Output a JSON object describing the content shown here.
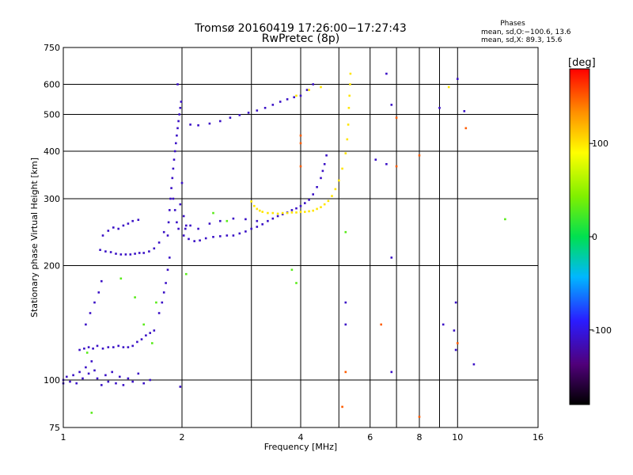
{
  "chart_data": {
    "type": "scatter",
    "title": "Tromsø 20160419 17:26:00−17:27:43",
    "subtitle": "RwPretec (8p)",
    "xlabel": "Frequency [MHz]",
    "ylabel": "Stationary phase Virtual Height [km]",
    "x_scale": "log",
    "y_scale": "log",
    "xlim": [
      1,
      16
    ],
    "ylim": [
      75,
      750
    ],
    "x_ticks": [
      1,
      2,
      4,
      6,
      8,
      10,
      16
    ],
    "y_ticks": [
      75,
      100,
      200,
      300,
      400,
      500,
      600,
      750
    ],
    "x_grid_minor": [
      3,
      5,
      7,
      9
    ],
    "grid": true,
    "stats": {
      "heading": "Phases",
      "line1": "mean, sd,O:−100.6, 13.6",
      "line2": "mean, sd,X:  89.3, 15.6"
    },
    "colorbar": {
      "label": "[deg]",
      "range": [
        -180,
        180
      ],
      "ticks": [
        100,
        0,
        -100
      ]
    },
    "series": [
      {
        "color_value": -110,
        "points": [
          [
            1.0,
            100
          ],
          [
            1.02,
            102
          ],
          [
            1.04,
            99
          ],
          [
            1.06,
            103
          ],
          [
            1.08,
            98
          ],
          [
            1.1,
            105
          ],
          [
            1.12,
            101
          ],
          [
            1.14,
            108
          ],
          [
            1.16,
            104
          ],
          [
            1.18,
            112
          ],
          [
            1.2,
            106
          ],
          [
            1.22,
            101
          ],
          [
            1.25,
            97
          ],
          [
            1.28,
            103
          ],
          [
            1.3,
            99
          ],
          [
            1.33,
            105
          ],
          [
            1.36,
            98
          ],
          [
            1.39,
            102
          ],
          [
            1.42,
            97
          ],
          [
            1.46,
            101
          ],
          [
            1.5,
            99
          ],
          [
            1.55,
            104
          ],
          [
            1.6,
            98
          ],
          [
            1.66,
            100
          ],
          [
            1.1,
            120
          ],
          [
            1.13,
            121
          ],
          [
            1.16,
            122
          ],
          [
            1.19,
            121
          ],
          [
            1.22,
            123
          ],
          [
            1.26,
            121
          ],
          [
            1.3,
            122
          ],
          [
            1.34,
            122
          ],
          [
            1.38,
            123
          ],
          [
            1.42,
            122
          ],
          [
            1.46,
            122
          ],
          [
            1.5,
            123
          ],
          [
            1.54,
            126
          ],
          [
            1.58,
            128
          ],
          [
            1.62,
            131
          ],
          [
            1.66,
            133
          ],
          [
            1.7,
            135
          ],
          [
            1.14,
            140
          ],
          [
            1.17,
            150
          ],
          [
            1.2,
            160
          ],
          [
            1.23,
            170
          ],
          [
            1.25,
            182
          ],
          [
            1.75,
            150
          ],
          [
            1.78,
            160
          ],
          [
            1.8,
            170
          ],
          [
            1.82,
            180
          ],
          [
            1.84,
            195
          ],
          [
            1.86,
            210
          ],
          [
            1.24,
            220
          ],
          [
            1.28,
            218
          ],
          [
            1.32,
            217
          ],
          [
            1.36,
            215
          ],
          [
            1.4,
            214
          ],
          [
            1.44,
            214
          ],
          [
            1.48,
            214
          ],
          [
            1.52,
            215
          ],
          [
            1.56,
            216
          ],
          [
            1.6,
            216
          ],
          [
            1.65,
            218
          ],
          [
            1.7,
            222
          ],
          [
            1.75,
            230
          ],
          [
            1.8,
            245
          ],
          [
            1.26,
            240
          ],
          [
            1.3,
            247
          ],
          [
            1.34,
            252
          ],
          [
            1.38,
            250
          ],
          [
            1.42,
            255
          ],
          [
            1.46,
            258
          ],
          [
            1.5,
            262
          ],
          [
            1.55,
            264
          ],
          [
            1.84,
            240
          ],
          [
            1.85,
            260
          ],
          [
            1.86,
            280
          ],
          [
            1.87,
            300
          ],
          [
            1.88,
            320
          ],
          [
            1.89,
            340
          ],
          [
            1.9,
            360
          ],
          [
            1.91,
            380
          ],
          [
            1.92,
            400
          ],
          [
            1.93,
            420
          ],
          [
            1.94,
            440
          ],
          [
            1.95,
            460
          ],
          [
            1.96,
            480
          ],
          [
            1.97,
            500
          ],
          [
            1.98,
            520
          ],
          [
            1.99,
            540
          ],
          [
            1.9,
            300
          ],
          [
            1.92,
            280
          ],
          [
            1.94,
            260
          ],
          [
            1.96,
            250
          ],
          [
            1.98,
            290
          ],
          [
            2.0,
            330
          ],
          [
            2.02,
            270
          ],
          [
            2.04,
            250
          ],
          [
            1.95,
            600
          ],
          [
            2.05,
            255
          ],
          [
            2.02,
            240
          ],
          [
            2.08,
            235
          ],
          [
            2.15,
            232
          ],
          [
            2.22,
            233
          ],
          [
            2.3,
            236
          ],
          [
            2.4,
            238
          ],
          [
            2.5,
            239
          ],
          [
            2.6,
            240
          ],
          [
            2.7,
            240
          ],
          [
            2.8,
            243
          ],
          [
            2.9,
            246
          ],
          [
            3.0,
            250
          ],
          [
            3.1,
            253
          ],
          [
            3.2,
            257
          ],
          [
            3.3,
            262
          ],
          [
            3.4,
            266
          ],
          [
            3.5,
            270
          ],
          [
            3.6,
            273
          ],
          [
            3.7,
            276
          ],
          [
            3.8,
            280
          ],
          [
            3.9,
            283
          ],
          [
            4.0,
            287
          ],
          [
            4.1,
            292
          ],
          [
            4.2,
            298
          ],
          [
            4.3,
            308
          ],
          [
            4.4,
            322
          ],
          [
            4.5,
            340
          ],
          [
            4.55,
            355
          ],
          [
            4.6,
            370
          ],
          [
            4.65,
            390
          ],
          [
            2.1,
            255
          ],
          [
            2.2,
            250
          ],
          [
            2.35,
            258
          ],
          [
            2.5,
            262
          ],
          [
            2.7,
            266
          ],
          [
            2.9,
            265
          ],
          [
            3.1,
            262
          ],
          [
            2.1,
            470
          ],
          [
            2.2,
            468
          ],
          [
            2.35,
            473
          ],
          [
            2.5,
            480
          ],
          [
            2.65,
            490
          ],
          [
            2.8,
            498
          ],
          [
            2.95,
            505
          ],
          [
            3.1,
            512
          ],
          [
            3.25,
            520
          ],
          [
            3.4,
            530
          ],
          [
            3.55,
            540
          ],
          [
            3.7,
            548
          ],
          [
            3.85,
            555
          ],
          [
            4.0,
            560
          ],
          [
            4.15,
            580
          ],
          [
            4.3,
            600
          ],
          [
            6.6,
            640
          ],
          [
            6.2,
            380
          ],
          [
            6.6,
            370
          ],
          [
            10.0,
            620
          ],
          [
            10.4,
            510
          ],
          [
            9.0,
            520
          ],
          [
            6.8,
            530
          ],
          [
            5.2,
            160
          ],
          [
            5.2,
            140
          ],
          [
            9.2,
            140
          ],
          [
            9.9,
            160
          ],
          [
            9.8,
            135
          ],
          [
            9.9,
            120
          ],
          [
            6.8,
            210
          ],
          [
            11.0,
            110
          ],
          [
            6.8,
            105
          ],
          [
            1.0,
            98
          ],
          [
            1.98,
            96
          ]
        ]
      },
      {
        "color_value": 100,
        "points": [
          [
            3.0,
            295
          ],
          [
            3.05,
            287
          ],
          [
            3.1,
            282
          ],
          [
            3.15,
            279
          ],
          [
            3.2,
            277
          ],
          [
            3.3,
            275
          ],
          [
            3.4,
            275
          ],
          [
            3.5,
            274
          ],
          [
            3.6,
            275
          ],
          [
            3.7,
            275
          ],
          [
            3.8,
            276
          ],
          [
            3.9,
            276
          ],
          [
            4.0,
            277
          ],
          [
            4.1,
            277
          ],
          [
            4.2,
            278
          ],
          [
            4.3,
            279
          ],
          [
            4.4,
            282
          ],
          [
            4.5,
            285
          ],
          [
            4.6,
            290
          ],
          [
            4.7,
            296
          ],
          [
            4.8,
            305
          ],
          [
            4.9,
            318
          ],
          [
            5.0,
            335
          ],
          [
            5.1,
            360
          ],
          [
            5.2,
            395
          ],
          [
            5.25,
            430
          ],
          [
            5.28,
            470
          ],
          [
            5.3,
            520
          ],
          [
            5.32,
            560
          ],
          [
            5.34,
            600
          ],
          [
            5.35,
            640
          ],
          [
            3.9,
            560
          ],
          [
            4.2,
            580
          ],
          [
            4.5,
            590
          ],
          [
            9.5,
            590
          ]
        ]
      },
      {
        "color_value": 30,
        "points": [
          [
            1.18,
            82
          ],
          [
            1.4,
            185
          ],
          [
            1.52,
            165
          ],
          [
            1.6,
            140
          ],
          [
            1.72,
            160
          ],
          [
            2.05,
            190
          ],
          [
            2.4,
            275
          ],
          [
            2.6,
            262
          ],
          [
            3.8,
            195
          ],
          [
            3.9,
            180
          ],
          [
            5.2,
            245
          ],
          [
            13.2,
            265
          ],
          [
            1.15,
            118
          ],
          [
            1.68,
            125
          ]
        ]
      },
      {
        "color_value": 150,
        "points": [
          [
            4.0,
            420
          ],
          [
            4.0,
            365
          ],
          [
            5.1,
            85
          ],
          [
            6.4,
            140
          ],
          [
            7.0,
            490
          ],
          [
            7.0,
            365
          ],
          [
            8.0,
            80
          ],
          [
            10.5,
            460
          ],
          [
            5.2,
            105
          ],
          [
            4.0,
            440
          ],
          [
            8.0,
            390
          ],
          [
            10.0,
            125
          ]
        ]
      }
    ]
  }
}
